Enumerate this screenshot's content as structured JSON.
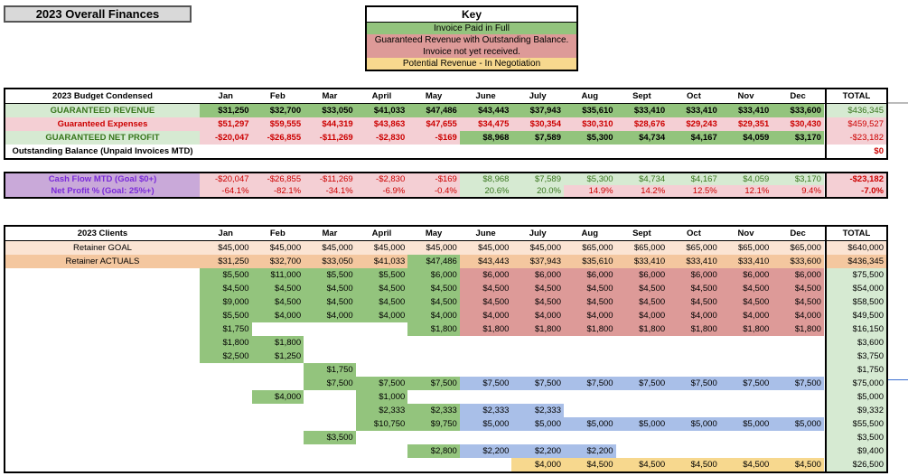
{
  "title": "2023 Overall Finances",
  "key": {
    "heading": "Key",
    "paid": "Invoice Paid in Full",
    "guaranteed_1": "Guaranteed Revenue with Outstanding Balance.",
    "guaranteed_2": "Invoice not yet received.",
    "potential": "Potential Revenue - In Negotiation"
  },
  "months": [
    "Jan",
    "Feb",
    "Mar",
    "April",
    "May",
    "June",
    "July",
    "Aug",
    "Sept",
    "Oct",
    "Nov",
    "Dec"
  ],
  "total_label": "TOTAL",
  "budget": {
    "header": "2023 Budget Condensed",
    "rows": [
      {
        "label": "GUARANTEED REVENUE",
        "values": [
          "$31,250",
          "$32,700",
          "$33,050",
          "$41,033",
          "$47,486",
          "$43,443",
          "$37,943",
          "$35,610",
          "$33,410",
          "$33,410",
          "$33,410",
          "$33,600"
        ],
        "total": "$436,345"
      },
      {
        "label": "Guaranteed Expenses",
        "values": [
          "$51,297",
          "$59,555",
          "$44,319",
          "$43,863",
          "$47,655",
          "$34,475",
          "$30,354",
          "$30,310",
          "$28,676",
          "$29,243",
          "$29,351",
          "$30,430"
        ],
        "total": "$459,527"
      },
      {
        "label": "GUARANTEED NET PROFIT",
        "values": [
          "-$20,047",
          "-$26,855",
          "-$11,269",
          "-$2,830",
          "-$169",
          "$8,968",
          "$7,589",
          "$5,300",
          "$4,734",
          "$4,167",
          "$4,059",
          "$3,170"
        ],
        "total": "-$23,182"
      },
      {
        "label": "Outstanding Balance (Unpaid Invoices MTD)",
        "values": [
          "",
          "",
          "",
          "",
          "",
          "",
          "",
          "",
          "",
          "",
          "",
          ""
        ],
        "total": "$0"
      }
    ]
  },
  "cashflow": {
    "rows": [
      {
        "label": "Cash Flow MTD (Goal $0+)",
        "values": [
          "-$20,047",
          "-$26,855",
          "-$11,269",
          "-$2,830",
          "-$169",
          "$8,968",
          "$7,589",
          "$5,300",
          "$4,734",
          "$4,167",
          "$4,059",
          "$3,170"
        ],
        "total": "-$23,182"
      },
      {
        "label": "Net Profit % (Goal: 25%+)",
        "values": [
          "-64.1%",
          "-82.1%",
          "-34.1%",
          "-6.9%",
          "-0.4%",
          "20.6%",
          "20.0%",
          "14.9%",
          "14.2%",
          "12.5%",
          "12.1%",
          "9.4%"
        ],
        "total": "-7.0%"
      }
    ]
  },
  "clients": {
    "header": "2023 Clients",
    "goal": {
      "label": "Retainer GOAL",
      "values": [
        "$45,000",
        "$45,000",
        "$45,000",
        "$45,000",
        "$45,000",
        "$45,000",
        "$45,000",
        "$65,000",
        "$65,000",
        "$65,000",
        "$65,000",
        "$65,000"
      ],
      "total": "$640,000"
    },
    "actuals": {
      "label": "Retainer ACTUALS",
      "values": [
        "$31,250",
        "$32,700",
        "$33,050",
        "$41,033",
        "$47,486",
        "$43,443",
        "$37,943",
        "$35,610",
        "$33,410",
        "$33,410",
        "$33,410",
        "$33,600"
      ],
      "total": "$436,345"
    },
    "rows": [
      {
        "values": [
          "$5,500",
          "$11,000",
          "$5,500",
          "$5,500",
          "$6,000",
          "$6,000",
          "$6,000",
          "$6,000",
          "$6,000",
          "$6,000",
          "$6,000",
          "$6,000"
        ],
        "colors": [
          "g",
          "g",
          "g",
          "g",
          "g",
          "r",
          "r",
          "r",
          "r",
          "r",
          "r",
          "r"
        ],
        "total": "$75,500"
      },
      {
        "values": [
          "$4,500",
          "$4,500",
          "$4,500",
          "$4,500",
          "$4,500",
          "$4,500",
          "$4,500",
          "$4,500",
          "$4,500",
          "$4,500",
          "$4,500",
          "$4,500"
        ],
        "colors": [
          "g",
          "g",
          "g",
          "g",
          "g",
          "r",
          "r",
          "r",
          "r",
          "r",
          "r",
          "r"
        ],
        "total": "$54,000"
      },
      {
        "values": [
          "$9,000",
          "$4,500",
          "$4,500",
          "$4,500",
          "$4,500",
          "$4,500",
          "$4,500",
          "$4,500",
          "$4,500",
          "$4,500",
          "$4,500",
          "$4,500"
        ],
        "colors": [
          "g",
          "g",
          "g",
          "g",
          "g",
          "r",
          "r",
          "r",
          "r",
          "r",
          "r",
          "r"
        ],
        "total": "$58,500"
      },
      {
        "values": [
          "$5,500",
          "$4,000",
          "$4,000",
          "$4,000",
          "$4,000",
          "$4,000",
          "$4,000",
          "$4,000",
          "$4,000",
          "$4,000",
          "$4,000",
          "$4,000"
        ],
        "colors": [
          "g",
          "g",
          "g",
          "g",
          "g",
          "r",
          "r",
          "r",
          "r",
          "r",
          "r",
          "r"
        ],
        "total": "$49,500"
      },
      {
        "values": [
          "$1,750",
          "",
          "",
          "",
          "$1,800",
          "$1,800",
          "$1,800",
          "$1,800",
          "$1,800",
          "$1,800",
          "$1,800",
          "$1,800"
        ],
        "colors": [
          "g",
          "",
          "",
          "",
          "g",
          "r",
          "r",
          "r",
          "r",
          "r",
          "r",
          "r"
        ],
        "total": "$16,150"
      },
      {
        "values": [
          "$1,800",
          "$1,800",
          "",
          "",
          "",
          "",
          "",
          "",
          "",
          "",
          "",
          ""
        ],
        "colors": [
          "g",
          "g",
          "",
          "",
          "",
          "",
          "",
          "",
          "",
          "",
          "",
          ""
        ],
        "total": "$3,600"
      },
      {
        "values": [
          "$2,500",
          "$1,250",
          "",
          "",
          "",
          "",
          "",
          "",
          "",
          "",
          "",
          ""
        ],
        "colors": [
          "g",
          "g",
          "",
          "",
          "",
          "",
          "",
          "",
          "",
          "",
          "",
          ""
        ],
        "total": "$3,750"
      },
      {
        "values": [
          "",
          "",
          "$1,750",
          "",
          "",
          "",
          "",
          "",
          "",
          "",
          "",
          ""
        ],
        "colors": [
          "",
          "",
          "g",
          "",
          "",
          "",
          "",
          "",
          "",
          "",
          "",
          ""
        ],
        "total": "$1,750"
      },
      {
        "values": [
          "",
          "",
          "$7,500",
          "$7,500",
          "$7,500",
          "$7,500",
          "$7,500",
          "$7,500",
          "$7,500",
          "$7,500",
          "$7,500",
          "$7,500"
        ],
        "colors": [
          "",
          "",
          "g",
          "g",
          "g",
          "bl",
          "bl",
          "bl",
          "bl",
          "bl",
          "bl",
          "bl"
        ],
        "total": "$75,000"
      },
      {
        "values": [
          "",
          "$4,000",
          "",
          "$1,000",
          "",
          "",
          "",
          "",
          "",
          "",
          "",
          ""
        ],
        "colors": [
          "",
          "g",
          "",
          "g",
          "",
          "",
          "",
          "",
          "",
          "",
          "",
          ""
        ],
        "total": "$5,000"
      },
      {
        "values": [
          "",
          "",
          "",
          "$2,333",
          "$2,333",
          "$2,333",
          "$2,333",
          "",
          "",
          "",
          "",
          ""
        ],
        "colors": [
          "",
          "",
          "",
          "g",
          "g",
          "bl",
          "bl",
          "",
          "",
          "",
          "",
          ""
        ],
        "total": "$9,332"
      },
      {
        "values": [
          "",
          "",
          "",
          "$10,750",
          "$9,750",
          "$5,000",
          "$5,000",
          "$5,000",
          "$5,000",
          "$5,000",
          "$5,000",
          "$5,000"
        ],
        "colors": [
          "",
          "",
          "",
          "g",
          "g",
          "bl",
          "bl",
          "bl",
          "bl",
          "bl",
          "bl",
          "bl"
        ],
        "total": "$55,500"
      },
      {
        "values": [
          "",
          "",
          "$3,500",
          "",
          "",
          "",
          "",
          "",
          "",
          "",
          "",
          ""
        ],
        "colors": [
          "",
          "",
          "g",
          "",
          "",
          "",
          "",
          "",
          "",
          "",
          "",
          ""
        ],
        "total": "$3,500"
      },
      {
        "values": [
          "",
          "",
          "",
          "",
          "$2,800",
          "$2,200",
          "$2,200",
          "$2,200",
          "",
          "",
          "",
          ""
        ],
        "colors": [
          "",
          "",
          "",
          "",
          "g",
          "bl",
          "bl",
          "bl",
          "",
          "",
          "",
          ""
        ],
        "total": "$9,400"
      },
      {
        "values": [
          "",
          "",
          "",
          "",
          "",
          "",
          "$4,000",
          "$4,500",
          "$4,500",
          "$4,500",
          "$4,500",
          "$4,500"
        ],
        "colors": [
          "",
          "",
          "",
          "",
          "",
          "",
          "y",
          "y",
          "y",
          "y",
          "y",
          "y"
        ],
        "total": "$26,500"
      }
    ]
  }
}
